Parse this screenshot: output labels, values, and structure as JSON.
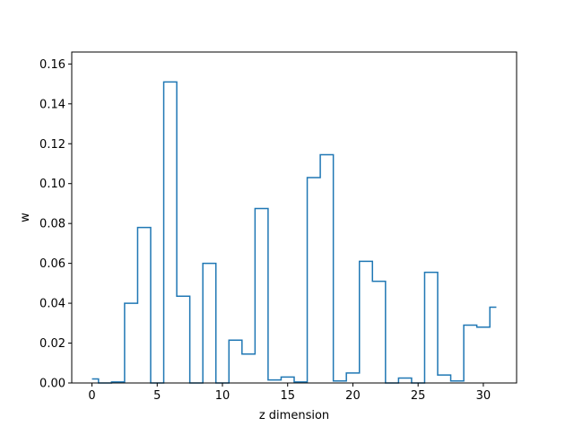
{
  "chart_data": {
    "type": "line",
    "drawstyle": "steps-mid",
    "title": "",
    "xlabel": "z dimension",
    "ylabel": "w",
    "xlim": [
      -1.55,
      32.55
    ],
    "ylim": [
      0,
      0.166
    ],
    "xticks": [
      0,
      5,
      10,
      15,
      20,
      25,
      30
    ],
    "xtick_labels": [
      "0",
      "5",
      "10",
      "15",
      "20",
      "25",
      "30"
    ],
    "yticks": [
      0,
      0.02,
      0.04,
      0.06,
      0.08,
      0.1,
      0.12,
      0.14,
      0.16
    ],
    "ytick_labels": [
      "0.00",
      "0.02",
      "0.04",
      "0.06",
      "0.08",
      "0.10",
      "0.12",
      "0.14",
      "0.16"
    ],
    "grid": false,
    "legend": null,
    "series": [
      {
        "color": "#1f77b4",
        "x": [
          0,
          1,
          2,
          3,
          4,
          5,
          6,
          7,
          8,
          9,
          10,
          11,
          12,
          13,
          14,
          15,
          16,
          17,
          18,
          19,
          20,
          21,
          22,
          23,
          24,
          25,
          26,
          27,
          28,
          29,
          30,
          31
        ],
        "values": [
          0.002,
          0.0,
          0.0005,
          0.04,
          0.078,
          0.0,
          0.151,
          0.0435,
          0.0,
          0.06,
          0.0,
          0.0215,
          0.0145,
          0.0875,
          0.0015,
          0.003,
          0.0005,
          0.103,
          0.1145,
          0.001,
          0.005,
          0.061,
          0.051,
          0.0,
          0.0025,
          0.0,
          0.0555,
          0.004,
          0.001,
          0.029,
          0.028,
          0.038
        ]
      }
    ]
  }
}
